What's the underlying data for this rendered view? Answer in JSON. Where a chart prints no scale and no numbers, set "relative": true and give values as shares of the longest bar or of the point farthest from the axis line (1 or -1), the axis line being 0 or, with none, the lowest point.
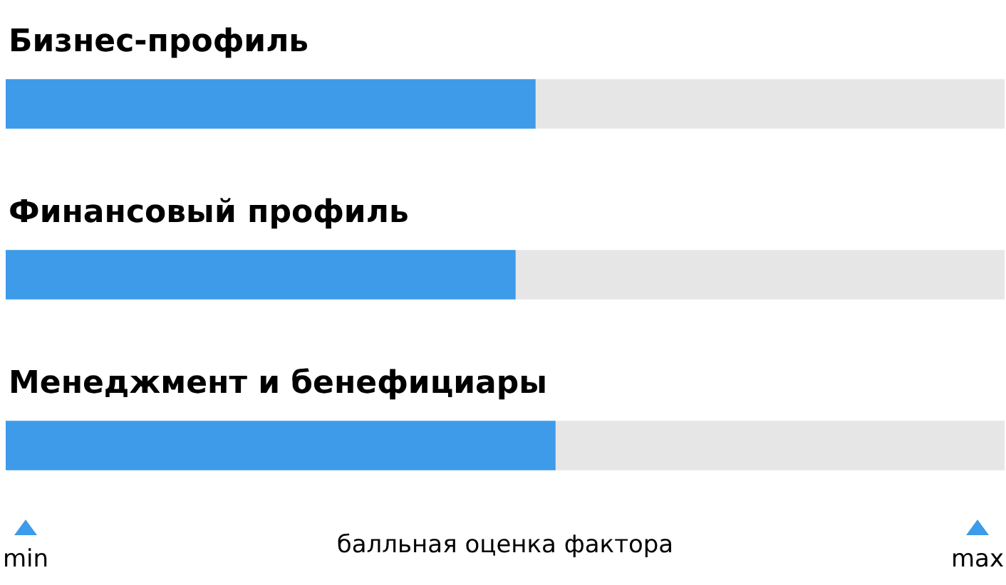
{
  "chart_data": {
    "type": "bar",
    "orientation": "horizontal",
    "stacked": true,
    "relative": true,
    "categories": [
      "Бизнес-профиль",
      "Финансовый профиль",
      "Менеджмент и бенефициары"
    ],
    "series": [
      {
        "color": "#3d9be9",
        "values": [
          0.53,
          0.51,
          0.55
        ]
      },
      {
        "color": "#e6e6e6",
        "values": [
          0.47,
          0.49,
          0.45
        ]
      }
    ],
    "xlabel": "балльная оценка фактора",
    "annotations": [
      "min",
      "max"
    ],
    "legend": false
  }
}
